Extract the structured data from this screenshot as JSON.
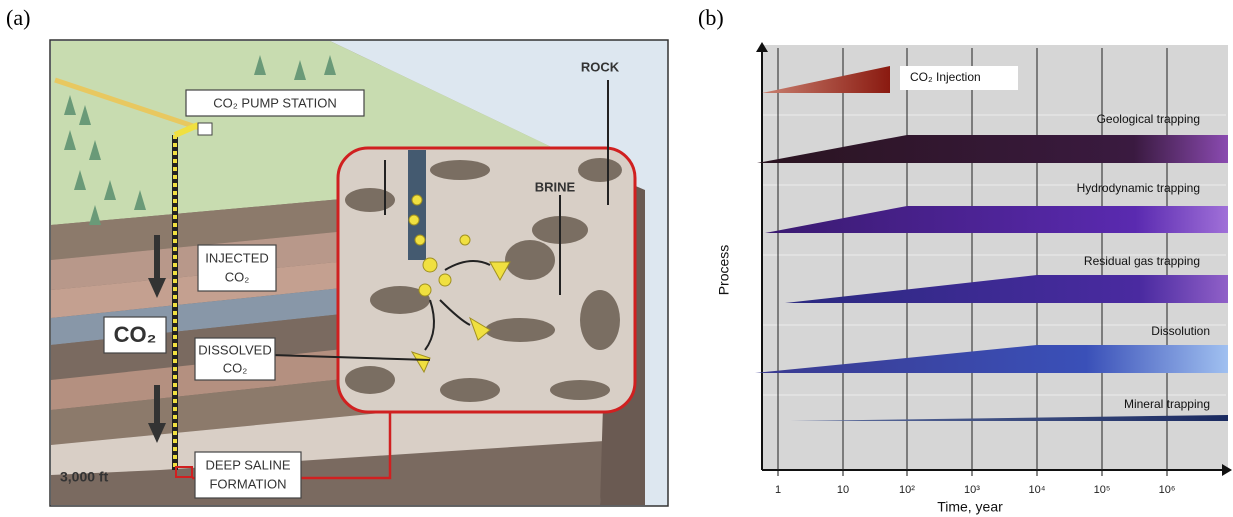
{
  "panel_a": {
    "label": "(a)",
    "pump_station": "CO₂ PUMP STATION",
    "rock": "ROCK",
    "brine": "BRINE",
    "injected": [
      "INJECTED",
      "CO₂"
    ],
    "co2": "CO₂",
    "dissolved": [
      "DISSOLVED",
      "CO₂"
    ],
    "formation": [
      "DEEP SALINE",
      "FORMATION"
    ],
    "depth": "3,000 ft"
  },
  "panel_b": {
    "label": "(b)",
    "y_label": "Process",
    "x_label": "Time, year",
    "xticks": [
      "1",
      "10",
      "10²",
      "10³",
      "10⁴",
      "10⁵",
      "10⁶"
    ],
    "processes": [
      "CO₂ Injection",
      "Geological trapping",
      "Hydrodynamic trapping",
      "Residual gas trapping",
      "Dissolution",
      "Mineral trapping"
    ]
  }
}
